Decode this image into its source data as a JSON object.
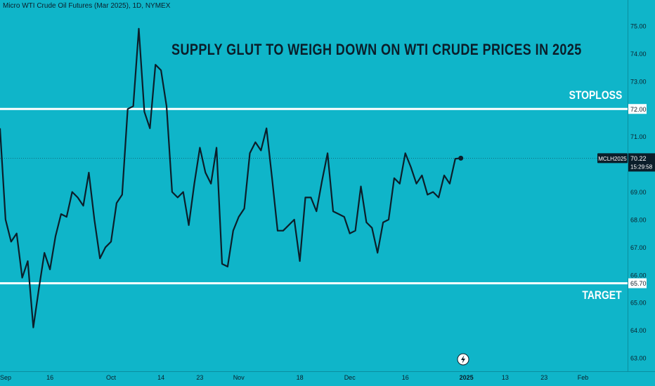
{
  "symbol_title": "Micro WTI Crude Oil Futures (Mar 2025), 1D, NYMEX",
  "headline": "SUPPLY GLUT TO WEIGH DOWN ON WTI CRUDE PRICES IN 2025",
  "annotations": {
    "stoploss": "STOPLOSS",
    "target": "TARGET"
  },
  "colors": {
    "background": "#0fb5c9",
    "price_line": "#0b1e2a",
    "level_lines": "#ffffff",
    "badge_bg": "#0b1e2a"
  },
  "icons": {
    "flash": "lightning-icon"
  },
  "chart_data": {
    "type": "line",
    "ylim": [
      62.7,
      75.3
    ],
    "y_ticks": [
      "75.00",
      "74.00",
      "73.00",
      "72.00",
      "71.00",
      "70.00",
      "69.00",
      "68.00",
      "67.00",
      "66.00",
      "65.00",
      "64.00",
      "63.00"
    ],
    "x_ticks": [
      {
        "label": "Sep",
        "i": 0
      },
      {
        "label": "16",
        "i": 9
      },
      {
        "label": "Oct",
        "i": 20
      },
      {
        "label": "14",
        "i": 29
      },
      {
        "label": "23",
        "i": 36
      },
      {
        "label": "Nov",
        "i": 43
      },
      {
        "label": "18",
        "i": 54
      },
      {
        "label": "Dec",
        "i": 63
      },
      {
        "label": "16",
        "i": 73
      },
      {
        "label": "2025",
        "i": 84
      },
      {
        "label": "13",
        "i": 91
      },
      {
        "label": "23",
        "i": 98
      },
      {
        "label": "Feb",
        "i": 105
      }
    ],
    "series": [
      {
        "values": [
          71.3,
          68.0,
          67.2,
          67.5,
          65.9,
          66.5,
          64.1,
          65.5,
          66.8,
          66.2,
          67.4,
          68.2,
          68.1,
          69.0,
          68.8,
          68.5,
          69.7,
          68.0,
          66.6,
          67.0,
          67.2,
          68.6,
          68.9,
          72.0,
          72.1,
          74.9,
          71.9,
          71.3,
          73.6,
          73.4,
          72.1,
          69.0,
          68.8,
          69.0,
          67.8,
          69.3,
          70.6,
          69.7,
          69.3,
          70.6,
          66.4,
          66.3,
          67.6,
          68.1,
          68.4,
          70.4,
          70.8,
          70.5,
          71.3,
          69.5,
          67.6,
          67.6,
          67.8,
          68.0,
          66.5,
          68.8,
          68.8,
          68.3,
          69.4,
          70.4,
          68.3,
          68.2,
          68.1,
          67.5,
          67.6,
          69.2,
          67.9,
          67.7,
          66.8,
          67.9,
          68.0,
          69.5,
          69.3,
          70.4,
          69.9,
          69.3,
          69.6,
          68.9,
          69.0,
          68.8,
          69.6,
          69.3,
          70.2,
          70.22
        ]
      }
    ],
    "levels": [
      {
        "name": "STOPLOSS",
        "value": 72.0,
        "label": "72.00"
      },
      {
        "name": "TARGET",
        "value": 65.7,
        "label": "65.70"
      }
    ],
    "last": {
      "value": 70.22,
      "label": "70.22",
      "ticker": "MCLH2025",
      "countdown": "15:29:58"
    },
    "grid": false
  }
}
